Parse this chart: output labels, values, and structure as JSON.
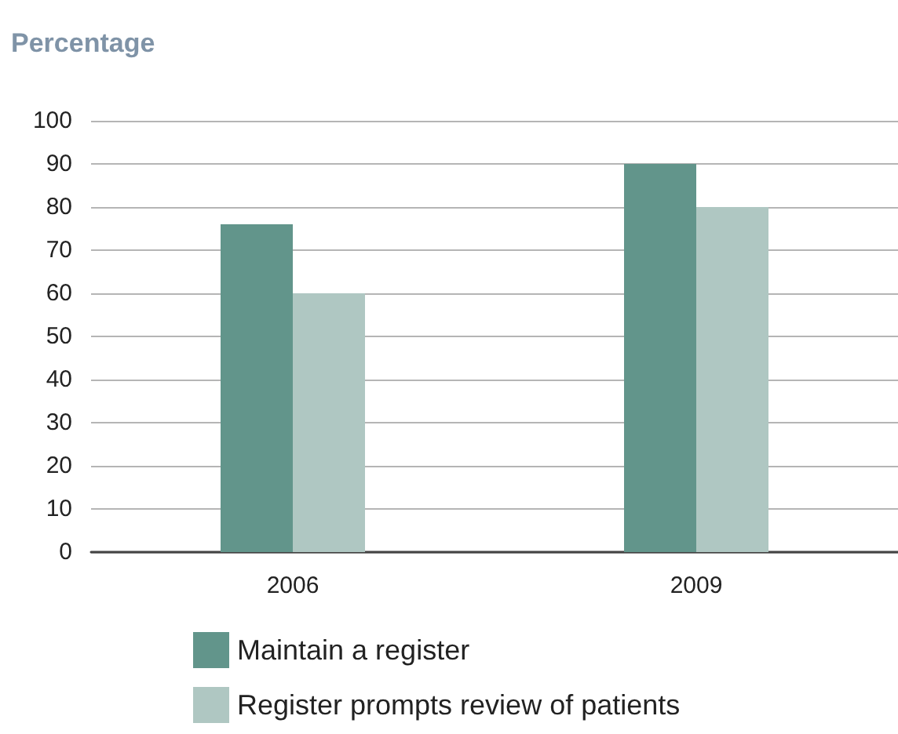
{
  "chart_data": {
    "type": "bar",
    "title": "Percentage",
    "categories": [
      "2006",
      "2009"
    ],
    "series": [
      {
        "name": "Maintain a register",
        "color": "#62958b",
        "values": [
          76,
          90
        ]
      },
      {
        "name": "Register prompts review of patients",
        "color": "#afc7c2",
        "values": [
          60,
          80
        ]
      }
    ],
    "ylim": [
      0,
      100
    ],
    "yticks": [
      0,
      10,
      20,
      30,
      40,
      50,
      60,
      70,
      80,
      90,
      100
    ],
    "grid": "y",
    "legend": "bottom"
  }
}
